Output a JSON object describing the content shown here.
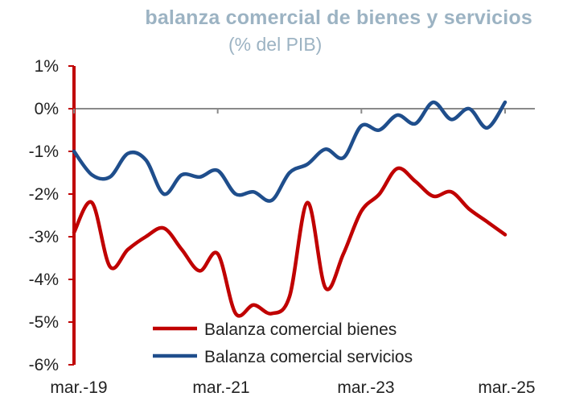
{
  "chart_data": {
    "type": "line",
    "title": "balanza comercial de bienes y servicios",
    "subtitle": "(% del PIB)",
    "xlabel": "",
    "ylabel": "",
    "x_tick_labels": [
      "mar.-19",
      "mar.-21",
      "mar.-23",
      "mar.-25"
    ],
    "y_tick_labels": [
      "1%",
      "0%",
      "-1%",
      "-2%",
      "-3%",
      "-4%",
      "-5%",
      "-6%"
    ],
    "ylim": [
      -6,
      1
    ],
    "y_unit": "%",
    "grid": false,
    "legend_position": "bottom-center",
    "x": [
      "mar.-19",
      "jun.-19",
      "sep.-19",
      "dic.-19",
      "mar.-20",
      "jun.-20",
      "sep.-20",
      "dic.-20",
      "mar.-21",
      "jun.-21",
      "sep.-21",
      "dic.-21",
      "mar.-22",
      "jun.-22",
      "sep.-22",
      "dic.-22",
      "mar.-23",
      "jun.-23",
      "sep.-23",
      "dic.-23",
      "mar.-24",
      "jun.-24",
      "sep.-24",
      "dic.-24",
      "mar.-25"
    ],
    "series": [
      {
        "name": "Balanza comercial bienes",
        "color": "#c00000",
        "values": [
          -2.9,
          -2.2,
          -3.7,
          -3.3,
          -3.0,
          -2.8,
          -3.3,
          -3.8,
          -3.4,
          -4.8,
          -4.6,
          -4.8,
          -4.4,
          -2.2,
          -4.2,
          -3.4,
          -2.4,
          -2.0,
          -1.4,
          -1.7,
          -2.05,
          -1.95,
          -2.35,
          -2.65,
          -2.95
        ]
      },
      {
        "name": "Balanza comercial servicios",
        "color": "#1f4e8c",
        "values": [
          -1.0,
          -1.55,
          -1.6,
          -1.05,
          -1.2,
          -2.0,
          -1.55,
          -1.6,
          -1.45,
          -2.0,
          -1.95,
          -2.15,
          -1.5,
          -1.3,
          -0.95,
          -1.15,
          -0.4,
          -0.5,
          -0.15,
          -0.35,
          0.15,
          -0.25,
          0.0,
          -0.45,
          0.15
        ]
      }
    ]
  }
}
